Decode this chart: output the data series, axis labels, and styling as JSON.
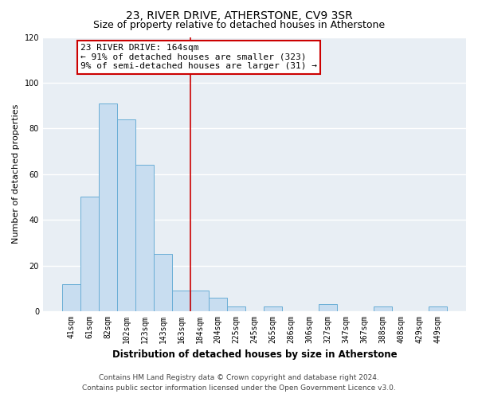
{
  "title": "23, RIVER DRIVE, ATHERSTONE, CV9 3SR",
  "subtitle": "Size of property relative to detached houses in Atherstone",
  "xlabel": "Distribution of detached houses by size in Atherstone",
  "ylabel": "Number of detached properties",
  "bar_labels": [
    "41sqm",
    "61sqm",
    "82sqm",
    "102sqm",
    "123sqm",
    "143sqm",
    "163sqm",
    "184sqm",
    "204sqm",
    "225sqm",
    "245sqm",
    "265sqm",
    "286sqm",
    "306sqm",
    "327sqm",
    "347sqm",
    "367sqm",
    "388sqm",
    "408sqm",
    "429sqm",
    "449sqm"
  ],
  "bar_values": [
    12,
    50,
    91,
    84,
    64,
    25,
    9,
    9,
    6,
    2,
    0,
    2,
    0,
    0,
    3,
    0,
    0,
    2,
    0,
    0,
    2
  ],
  "bar_color": "#c8ddf0",
  "bar_edge_color": "#6aaed6",
  "vline_x_idx": 6,
  "vline_color": "#cc0000",
  "ylim": [
    0,
    120
  ],
  "yticks": [
    0,
    20,
    40,
    60,
    80,
    100,
    120
  ],
  "annotation_line1": "23 RIVER DRIVE: 164sqm",
  "annotation_line2": "← 91% of detached houses are smaller (323)",
  "annotation_line3": "9% of semi-detached houses are larger (31) →",
  "annotation_box_color": "#ffffff",
  "annotation_box_edge_color": "#cc0000",
  "footer_line1": "Contains HM Land Registry data © Crown copyright and database right 2024.",
  "footer_line2": "Contains public sector information licensed under the Open Government Licence v3.0.",
  "fig_background_color": "#ffffff",
  "plot_background_color": "#e8eef4",
  "grid_color": "#ffffff",
  "title_fontsize": 10,
  "subtitle_fontsize": 9,
  "axis_label_fontsize": 8.5,
  "ylabel_fontsize": 8,
  "tick_fontsize": 7,
  "annotation_fontsize": 8,
  "footer_fontsize": 6.5
}
